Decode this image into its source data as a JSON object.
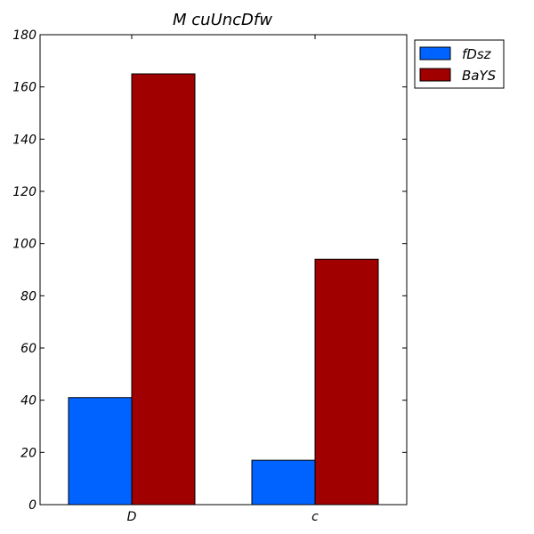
{
  "chart_data": {
    "type": "bar",
    "title": "M cuUncDfw",
    "xlabel": "",
    "ylabel": "",
    "categories": [
      "D",
      "c"
    ],
    "series": [
      {
        "name": "fDsz",
        "values": [
          41,
          17
        ],
        "color": "#0063ff"
      },
      {
        "name": "BaYS",
        "values": [
          165,
          94
        ],
        "color": "#a00000"
      }
    ],
    "ylim": [
      0,
      180
    ],
    "yticks": [
      "0",
      "20",
      "40",
      "60",
      "80",
      "100",
      "120",
      "140",
      "160",
      "180"
    ],
    "grid": false,
    "legend_position": "outside-top-right"
  }
}
